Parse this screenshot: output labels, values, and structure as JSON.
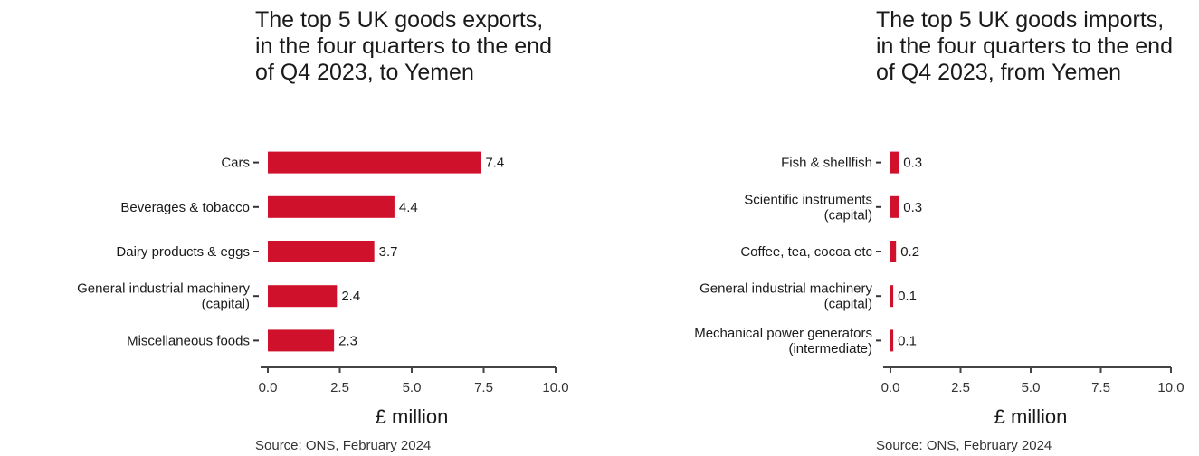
{
  "chart_data": [
    {
      "type": "bar",
      "orientation": "horizontal",
      "title": "The top 5 UK goods exports, in the four quarters to the end of Q4 2023, to Yemen",
      "categories": [
        [
          "Cars"
        ],
        [
          "Beverages & tobacco"
        ],
        [
          "Dairy products & eggs"
        ],
        [
          "General industrial machinery",
          "(capital)"
        ],
        [
          "Miscellaneous foods"
        ]
      ],
      "values": [
        7.4,
        4.4,
        3.7,
        2.4,
        2.3
      ],
      "value_labels": [
        "7.4",
        "4.4",
        "3.7",
        "2.4",
        "2.3"
      ],
      "xlabel": "£ million",
      "ylabel": "",
      "xlim": [
        0,
        10
      ],
      "xticks": [
        "0.0",
        "2.5",
        "5.0",
        "7.5",
        "10.0"
      ],
      "grid": false,
      "bar_color": "#d0112b",
      "source": "Source: ONS, February 2024"
    },
    {
      "type": "bar",
      "orientation": "horizontal",
      "title": "The top 5 UK goods imports, in the four quarters to the end of Q4 2023, from Yemen",
      "categories": [
        [
          "Fish & shellfish"
        ],
        [
          "Scientific instruments",
          "(capital)"
        ],
        [
          "Coffee, tea, cocoa etc"
        ],
        [
          "General industrial machinery",
          "(capital)"
        ],
        [
          "Mechanical power generators",
          "(intermediate)"
        ]
      ],
      "values": [
        0.3,
        0.3,
        0.2,
        0.1,
        0.1
      ],
      "value_labels": [
        "0.3",
        "0.3",
        "0.2",
        "0.1",
        "0.1"
      ],
      "xlabel": "£ million",
      "ylabel": "",
      "xlim": [
        0,
        10
      ],
      "xticks": [
        "0.0",
        "2.5",
        "5.0",
        "7.5",
        "10.0"
      ],
      "grid": false,
      "bar_color": "#d0112b",
      "source": "Source: ONS, February 2024"
    }
  ]
}
